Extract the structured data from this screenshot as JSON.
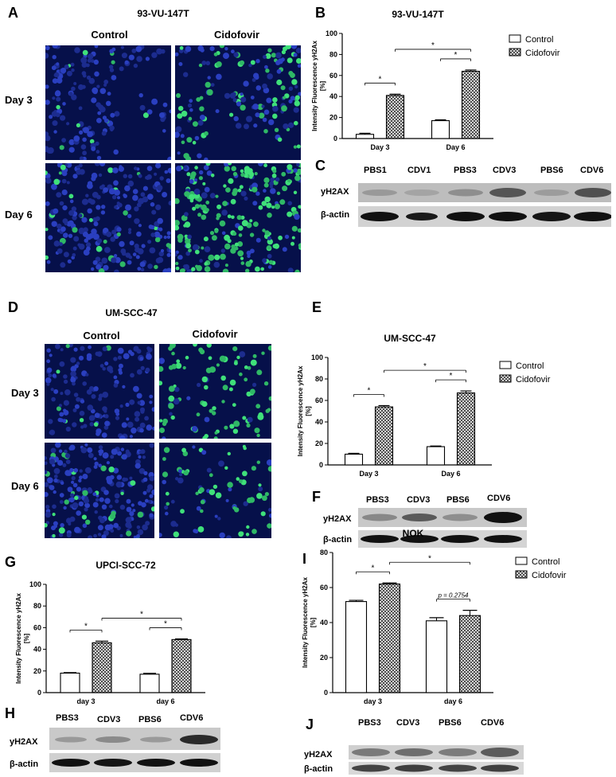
{
  "panels": {
    "A": {
      "letter": "A",
      "title": "93-VU-147T",
      "col_labels": [
        "Control",
        "Cidofovir"
      ],
      "row_labels": [
        "Day 3",
        "Day 6"
      ]
    },
    "B": {
      "letter": "B",
      "title": "93-VU-147T"
    },
    "C": {
      "letter": "C",
      "lanes": [
        "PBS1",
        "CDV1",
        "PBS3",
        "CDV3",
        "PBS6",
        "CDV6"
      ],
      "rows": [
        "yH2AX",
        "β-actin"
      ]
    },
    "D": {
      "letter": "D",
      "title": "UM-SCC-47",
      "col_labels": [
        "Control",
        "Cidofovir"
      ],
      "row_labels": [
        "Day 3",
        "Day 6"
      ]
    },
    "E": {
      "letter": "E",
      "title": "UM-SCC-47"
    },
    "F": {
      "letter": "F",
      "lanes": [
        "PBS3",
        "CDV3",
        "PBS6",
        "CDV6"
      ],
      "rows": [
        "yH2AX",
        "β-actin"
      ]
    },
    "G": {
      "letter": "G",
      "title": "UPCI-SCC-72"
    },
    "H": {
      "letter": "H",
      "lanes": [
        "PBS3",
        "CDV3",
        "PBS6",
        "CDV6"
      ],
      "rows": [
        "yH2AX",
        "β-actin"
      ]
    },
    "I": {
      "letter": "I",
      "title": "NOK"
    },
    "J": {
      "letter": "J",
      "lanes": [
        "PBS3",
        "CDV3",
        "PBS6",
        "CDV6"
      ],
      "rows": [
        "yH2AX",
        "β-actin"
      ]
    }
  },
  "colors": {
    "micro_bg": "#06104a",
    "nucleus_blue": "#2233aa",
    "gfp_green": "#33dd66"
  },
  "chart_data": [
    {
      "panel": "B",
      "type": "bar",
      "title": "93-VU-147T",
      "categories": [
        "Day 3",
        "Day 6"
      ],
      "ylabel": "Intensity Fluorescence yH2Ax [%]",
      "ylim": [
        0,
        100
      ],
      "yticks": [
        0,
        20,
        40,
        60,
        80,
        100
      ],
      "series": [
        {
          "name": "Control",
          "values": [
            4,
            17
          ],
          "errors": [
            1,
            0.8
          ]
        },
        {
          "name": "Cidofovir",
          "values": [
            41,
            64
          ],
          "errors": [
            1.2,
            1.2
          ]
        }
      ],
      "significance": [
        "*",
        "*",
        "*"
      ],
      "legend": "top-right"
    },
    {
      "panel": "E",
      "type": "bar",
      "title": "UM-SCC-47",
      "categories": [
        "Day 3",
        "Day 6"
      ],
      "ylabel": "Intensity Fluorescence yH2Ax [%]",
      "ylim": [
        0,
        100
      ],
      "yticks": [
        0,
        20,
        40,
        60,
        80,
        100
      ],
      "series": [
        {
          "name": "Control",
          "values": [
            10,
            17
          ],
          "errors": [
            0.8,
            0.6
          ]
        },
        {
          "name": "Cidofovir",
          "values": [
            54,
            67
          ],
          "errors": [
            1.2,
            1.8
          ]
        }
      ],
      "significance": [
        "*",
        "*",
        "*"
      ],
      "legend": "top-right"
    },
    {
      "panel": "G",
      "type": "bar",
      "title": "UPCI-SCC-72",
      "categories": [
        "day 3",
        "day 6"
      ],
      "ylabel": "Intensity Fluorescence yH2Ax [%]",
      "ylim": [
        0,
        100
      ],
      "yticks": [
        0,
        20,
        40,
        60,
        80,
        100
      ],
      "series": [
        {
          "name": "Control",
          "values": [
            18,
            17
          ],
          "errors": [
            0.5,
            0.8
          ]
        },
        {
          "name": "Cidofovir",
          "values": [
            46,
            49
          ],
          "errors": [
            1.5,
            0.6
          ]
        }
      ],
      "significance": [
        "*",
        "*",
        "*"
      ],
      "legend": "none"
    },
    {
      "panel": "I",
      "type": "bar",
      "title": "NOK",
      "categories": [
        "day 3",
        "day 6"
      ],
      "ylabel": "Intensity Fluorescence yH2Ax [%]",
      "ylim": [
        0,
        80
      ],
      "yticks": [
        0,
        20,
        40,
        60,
        80
      ],
      "series": [
        {
          "name": "Control",
          "values": [
            52,
            41
          ],
          "errors": [
            0.7,
            1.8
          ]
        },
        {
          "name": "Cidofovir",
          "values": [
            62,
            44
          ],
          "errors": [
            0.6,
            3
          ]
        }
      ],
      "significance": [
        "*",
        "*",
        "p = 0.2754"
      ],
      "legend": "top-right"
    }
  ]
}
